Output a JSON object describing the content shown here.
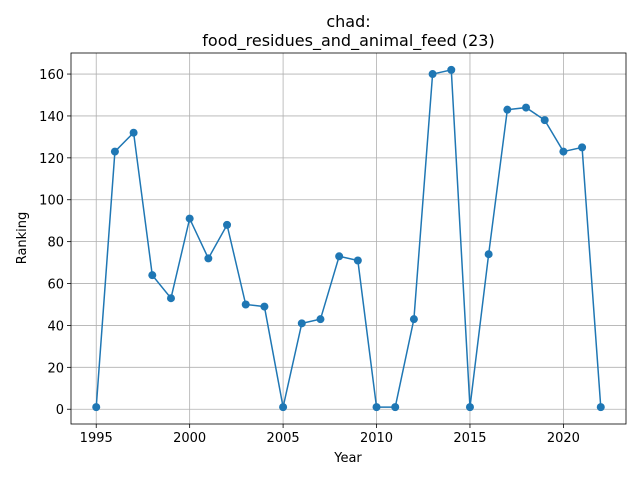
{
  "chart_data": {
    "type": "line",
    "title": "chad:\nfood_residues_and_animal_feed (23)",
    "xlabel": "Year",
    "ylabel": "Ranking",
    "x": [
      1995,
      1996,
      1997,
      1998,
      1999,
      2000,
      2001,
      2002,
      2003,
      2004,
      2005,
      2006,
      2007,
      2008,
      2009,
      2010,
      2011,
      2012,
      2013,
      2014,
      2015,
      2016,
      2017,
      2018,
      2019,
      2020,
      2021,
      2022
    ],
    "series": [
      {
        "color": "#1f77b4",
        "values": [
          1,
          123,
          132,
          64,
          53,
          91,
          72,
          88,
          50,
          49,
          1,
          41,
          43,
          73,
          71,
          1,
          1,
          43,
          160,
          162,
          1,
          74,
          143,
          144,
          138,
          123,
          125,
          1
        ]
      }
    ],
    "xlim": [
      1993.65,
      2023.35
    ],
    "xticks": [
      1995,
      2000,
      2005,
      2010,
      2015,
      2020
    ],
    "ylim": [
      -7.05,
      170.05
    ],
    "yticks": [
      0,
      20,
      40,
      60,
      80,
      100,
      120,
      140,
      160
    ],
    "grid": true
  }
}
